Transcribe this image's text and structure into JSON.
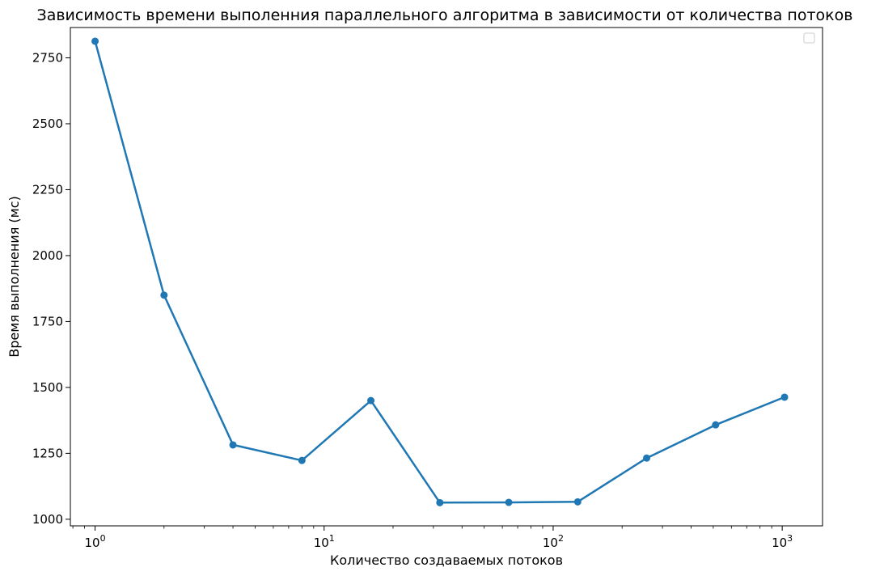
{
  "chart_data": {
    "type": "line",
    "title": "Зависимость времени выполенния параллельного алгоритма в зависимости от количества потоков",
    "xlabel": "Количество создаваемых потоков",
    "ylabel": "Время выполнения (мс)",
    "x_scale": "log",
    "xlim": [
      0.78,
      1500
    ],
    "ylim": [
      975,
      2865
    ],
    "x_ticks": [
      1,
      10,
      100,
      1000
    ],
    "x_tick_labels": [
      {
        "base": "10",
        "exp": "0"
      },
      {
        "base": "10",
        "exp": "1"
      },
      {
        "base": "10",
        "exp": "2"
      },
      {
        "base": "10",
        "exp": "3"
      }
    ],
    "y_ticks": [
      1000,
      1250,
      1500,
      1750,
      2000,
      2250,
      2500,
      2750
    ],
    "y_tick_labels": [
      "1000",
      "1250",
      "1500",
      "1750",
      "2000",
      "2250",
      "2500",
      "2750"
    ],
    "legend": "top-right, empty",
    "grid": false,
    "series": [
      {
        "color": "#1f77b4",
        "marker": "circle",
        "x": [
          1,
          2,
          4,
          8,
          16,
          32,
          64,
          128,
          256,
          512,
          1024
        ],
        "y": [
          2813,
          1850,
          1282,
          1223,
          1450,
          1063,
          1064,
          1066,
          1232,
          1358,
          1463
        ]
      }
    ]
  }
}
